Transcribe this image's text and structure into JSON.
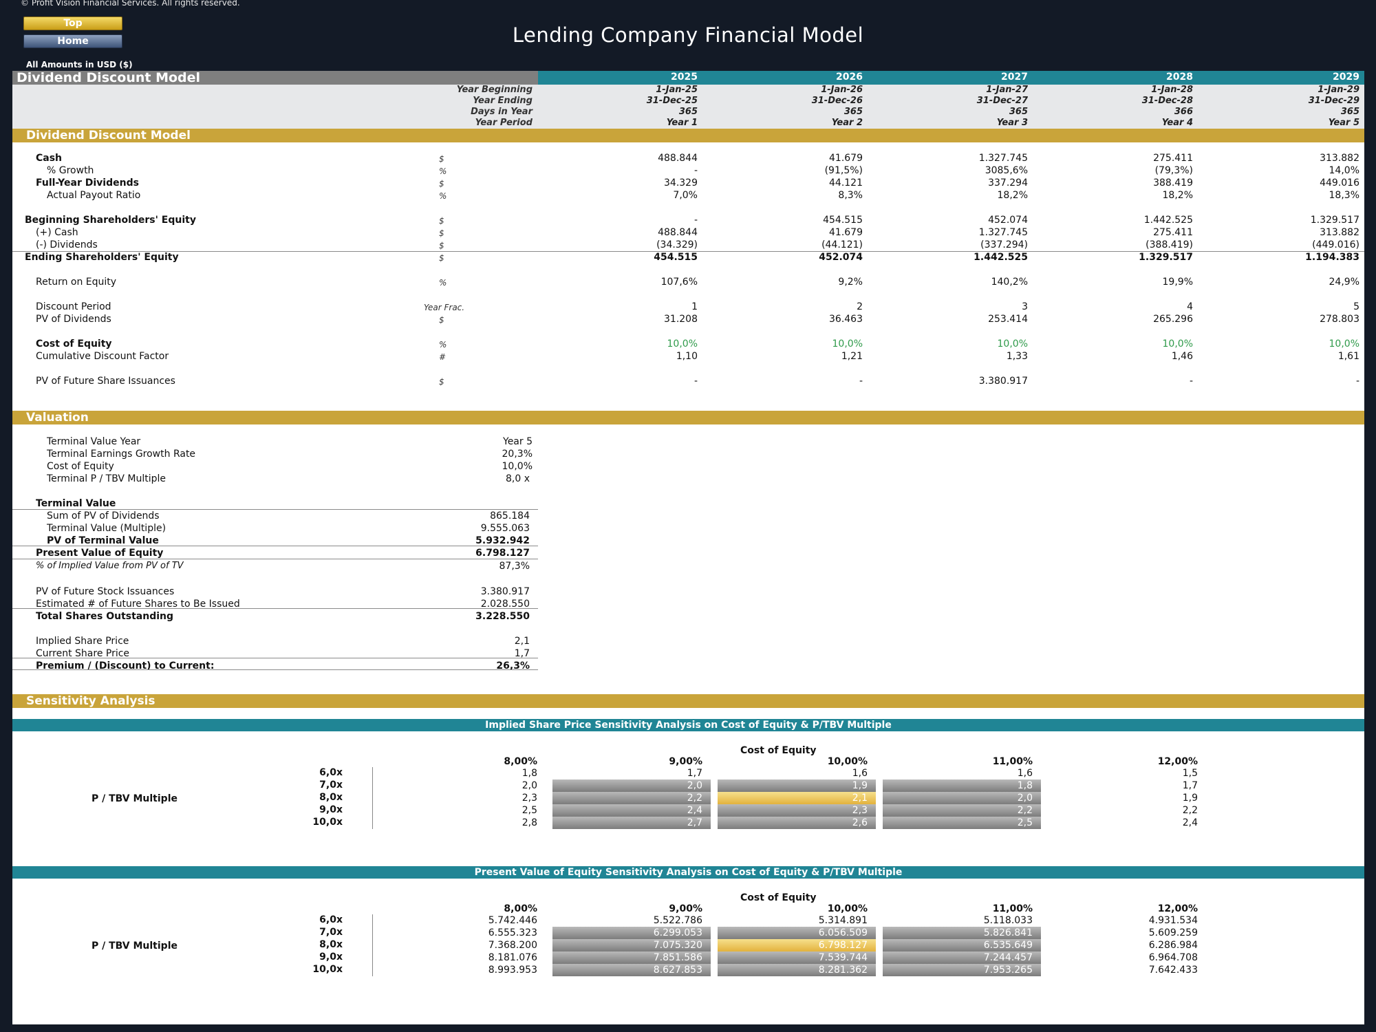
{
  "header": {
    "copyright": "© Profit Vision Financial Services. All rights reserved.",
    "top_btn": "Top",
    "home_btn": "Home",
    "title": "Lending Company Financial Model",
    "amounts": "All Amounts in  USD ($)"
  },
  "ddm_header": {
    "title": "Dividend Discount Model",
    "years": [
      "2025",
      "2026",
      "2027",
      "2028",
      "2029"
    ],
    "info_labels": [
      "Year Beginning",
      "Year Ending",
      "Days in Year",
      "Year Period"
    ],
    "info": [
      [
        "1-Jan-25",
        "1-Jan-26",
        "1-Jan-27",
        "1-Jan-28",
        "1-Jan-29"
      ],
      [
        "31-Dec-25",
        "31-Dec-26",
        "31-Dec-27",
        "31-Dec-28",
        "31-Dec-29"
      ],
      [
        "365",
        "365",
        "365",
        "366",
        "365"
      ],
      [
        "Year 1",
        "Year 2",
        "Year 3",
        "Year 4",
        "Year 5"
      ]
    ]
  },
  "ddm": {
    "section_title": "Dividend Discount Model",
    "rows": [
      {
        "label": "Cash",
        "unit": "$",
        "values": [
          "488.844",
          "41.679",
          "1.327.745",
          "275.411",
          "313.882"
        ]
      },
      {
        "label": "% Growth",
        "unit": "%",
        "values": [
          "-",
          "(91,5%)",
          "3085,6%",
          "(79,3%)",
          "14,0%"
        ]
      },
      {
        "label": "Full-Year Dividends",
        "unit": "$",
        "values": [
          "34.329",
          "44.121",
          "337.294",
          "388.419",
          "449.016"
        ]
      },
      {
        "label": "Actual Payout Ratio",
        "unit": "%",
        "values": [
          "7,0%",
          "8,3%",
          "18,2%",
          "18,2%",
          "18,3%"
        ]
      },
      {
        "label": "Beginning Shareholders' Equity",
        "unit": "$",
        "values": [
          "-",
          "454.515",
          "452.074",
          "1.442.525",
          "1.329.517"
        ]
      },
      {
        "label": "(+) Cash",
        "unit": "$",
        "values": [
          "488.844",
          "41.679",
          "1.327.745",
          "275.411",
          "313.882"
        ]
      },
      {
        "label": "(-) Dividends",
        "unit": "$",
        "values": [
          "(34.329)",
          "(44.121)",
          "(337.294)",
          "(388.419)",
          "(449.016)"
        ]
      },
      {
        "label": "Ending Shareholders' Equity",
        "unit": "$",
        "values": [
          "454.515",
          "452.074",
          "1.442.525",
          "1.329.517",
          "1.194.383"
        ]
      },
      {
        "label": "Return on Equity",
        "unit": "%",
        "values": [
          "107,6%",
          "9,2%",
          "140,2%",
          "19,9%",
          "24,9%"
        ]
      },
      {
        "label": "Discount Period",
        "unit": "Year Frac.",
        "values": [
          "1",
          "2",
          "3",
          "4",
          "5"
        ]
      },
      {
        "label": "PV of Dividends",
        "unit": "$",
        "values": [
          "31.208",
          "36.463",
          "253.414",
          "265.296",
          "278.803"
        ]
      },
      {
        "label": "Cost of Equity",
        "unit": "%",
        "values": [
          "10,0%",
          "10,0%",
          "10,0%",
          "10,0%",
          "10,0%"
        ]
      },
      {
        "label": "Cumulative Discount Factor",
        "unit": "#",
        "values": [
          "1,10",
          "1,21",
          "1,33",
          "1,46",
          "1,61"
        ]
      },
      {
        "label": "PV of Future Share Issuances",
        "unit": "$",
        "values": [
          "-",
          "-",
          "3.380.917",
          "-",
          "-"
        ]
      }
    ]
  },
  "valuation": {
    "section_title": "Valuation",
    "rows": [
      {
        "label": "Terminal Value Year",
        "value": "Year 5"
      },
      {
        "label": "Terminal Earnings Growth Rate",
        "value": "20,3%"
      },
      {
        "label": "Cost of Equity",
        "value": "10,0%"
      },
      {
        "label": "Terminal P / TBV Multiple",
        "value": "8,0 x"
      },
      {
        "label": "Terminal Value",
        "value": ""
      },
      {
        "label": "Sum of PV of Dividends",
        "value": "865.184"
      },
      {
        "label": "Terminal Value (Multiple)",
        "value": "9.555.063"
      },
      {
        "label": "PV of Terminal Value",
        "value": "5.932.942"
      },
      {
        "label": "Present Value of Equity",
        "value": "6.798.127"
      },
      {
        "label": "% of Implied Value from PV of TV",
        "value": "87,3%"
      },
      {
        "label": "PV of Future Stock Issuances",
        "value": "3.380.917"
      },
      {
        "label": "Estimated # of Future Shares to Be Issued",
        "value": "2.028.550"
      },
      {
        "label": "Total Shares Outstanding",
        "value": "3.228.550"
      },
      {
        "label": "Implied Share Price",
        "value": "2,1"
      },
      {
        "label": "Current Share Price",
        "value": "1,7"
      },
      {
        "label": "Premium / (Discount) to Current:",
        "value": "26,3%"
      }
    ]
  },
  "sensitivity": {
    "section_title": "Sensitivity Analysis",
    "tables": [
      {
        "title": "Implied Share Price Sensitivity Analysis on Cost of Equity & P/TBV Multiple",
        "col_title": "Cost of Equity",
        "row_title": "P / TBV Multiple",
        "cols": [
          "8,00%",
          "9,00%",
          "10,00%",
          "11,00%",
          "12,00%"
        ],
        "rows": [
          "6,0x",
          "7,0x",
          "8,0x",
          "9,0x",
          "10,0x"
        ],
        "cells": [
          [
            "1,8",
            "1,7",
            "1,6",
            "1,6",
            "1,5"
          ],
          [
            "2,0",
            "2,0",
            "1,9",
            "1,8",
            "1,7"
          ],
          [
            "2,3",
            "2,2",
            "2,1",
            "2,0",
            "1,9"
          ],
          [
            "2,5",
            "2,4",
            "2,3",
            "2,2",
            "2,2"
          ],
          [
            "2,8",
            "2,7",
            "2,6",
            "2,5",
            "2,4"
          ]
        ]
      },
      {
        "title": "Present Value of Equity Sensitivity Analysis on Cost of Equity & P/TBV Multiple",
        "col_title": "Cost of Equity",
        "row_title": "P / TBV Multiple",
        "cols": [
          "8,00%",
          "9,00%",
          "10,00%",
          "11,00%",
          "12,00%"
        ],
        "rows": [
          "6,0x",
          "7,0x",
          "8,0x",
          "9,0x",
          "10,0x"
        ],
        "cells": [
          [
            "5.742.446",
            "5.522.786",
            "5.314.891",
            "5.118.033",
            "4.931.534"
          ],
          [
            "6.555.323",
            "6.299.053",
            "6.056.509",
            "5.826.841",
            "5.609.259"
          ],
          [
            "7.368.200",
            "7.075.320",
            "6.798.127",
            "6.535.649",
            "6.286.984"
          ],
          [
            "8.181.076",
            "7.851.586",
            "7.539.744",
            "7.244.457",
            "6.964.708"
          ],
          [
            "8.993.953",
            "8.627.853",
            "8.281.362",
            "7.953.265",
            "7.642.433"
          ]
        ]
      }
    ]
  },
  "colors": {
    "gold": "#c9a43a",
    "teal": "#208595",
    "navy": "#131a26",
    "green": "#2f9a4a"
  }
}
